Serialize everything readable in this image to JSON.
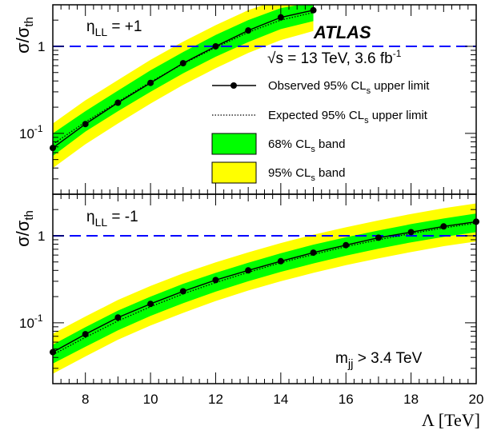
{
  "chart_data": [
    {
      "type": "line",
      "log_y": true,
      "xlim": [
        7,
        20
      ],
      "ylim": [
        0.02,
        3.0
      ],
      "ylabel": "σ/σ_th",
      "reference_line": 1,
      "annotation": {
        "prefix": "η",
        "sub": "LL",
        "suffix": " = +1"
      },
      "experiment": "ATLAS",
      "energy": {
        "sqrt": "√",
        "text": "s = 13 TeV, 3.6 fb",
        "sup": "-1"
      },
      "x": [
        7,
        8,
        9,
        10,
        11,
        12,
        13,
        14,
        15
      ],
      "observed": [
        0.068,
        0.128,
        0.225,
        0.38,
        0.64,
        1.0,
        1.52,
        2.15,
        2.6
      ],
      "expected": [
        0.075,
        0.135,
        0.23,
        0.39,
        0.63,
        0.97,
        1.45,
        2.0,
        2.45
      ],
      "band68": {
        "low": [
          0.055,
          0.105,
          0.18,
          0.3,
          0.49,
          0.76,
          1.12,
          1.58,
          1.95
        ],
        "high": [
          0.1,
          0.18,
          0.31,
          0.53,
          0.86,
          1.35,
          2.0,
          2.75,
          3.2
        ]
      },
      "band95": {
        "low": [
          0.04,
          0.075,
          0.13,
          0.22,
          0.36,
          0.56,
          0.84,
          1.18,
          1.5
        ],
        "high": [
          0.13,
          0.24,
          0.41,
          0.7,
          1.13,
          1.75,
          2.6,
          3.5,
          4.2
        ]
      },
      "yticks": [
        {
          "v": 1,
          "base": "1",
          "exp": ""
        },
        {
          "v": 0.1,
          "base": "10",
          "exp": "-1"
        }
      ],
      "legend": [
        {
          "kind": "observed",
          "base": "Observed 95% CL",
          "sub": "s",
          "tail": " upper limit",
          "color": "#000000"
        },
        {
          "kind": "expected",
          "base": "Expected 95% CL",
          "sub": "s",
          "tail": " upper limit",
          "color": "#000000"
        },
        {
          "kind": "band68",
          "base": "68% CL",
          "sub": "s",
          "tail": " band",
          "color": "#00ff00"
        },
        {
          "kind": "band95",
          "base": "95% CL",
          "sub": "s",
          "tail": " band",
          "color": "#ffff00"
        }
      ]
    },
    {
      "type": "line",
      "log_y": true,
      "xlim": [
        7,
        20
      ],
      "ylim": [
        0.02,
        3.0
      ],
      "ylabel": "σ/σ_th",
      "reference_line": 1,
      "annotation": {
        "prefix": "η",
        "sub": "LL",
        "suffix": " = -1"
      },
      "mass_cut": {
        "prefix": "m",
        "sub": "jj",
        "suffix": " > 3.4 TeV"
      },
      "xlabel": "Λ [TeV]",
      "x": [
        7,
        8,
        9,
        10,
        11,
        12,
        13,
        14,
        15,
        16,
        17,
        18,
        19,
        20
      ],
      "observed": [
        0.046,
        0.074,
        0.115,
        0.165,
        0.23,
        0.31,
        0.4,
        0.51,
        0.64,
        0.78,
        0.95,
        1.1,
        1.28,
        1.45
      ],
      "expected": [
        0.043,
        0.068,
        0.105,
        0.153,
        0.215,
        0.29,
        0.38,
        0.49,
        0.61,
        0.75,
        0.9,
        1.06,
        1.23,
        1.4
      ],
      "band68": {
        "low": [
          0.034,
          0.053,
          0.082,
          0.12,
          0.168,
          0.228,
          0.3,
          0.385,
          0.48,
          0.59,
          0.71,
          0.84,
          0.97,
          1.1
        ],
        "high": [
          0.056,
          0.089,
          0.138,
          0.2,
          0.28,
          0.375,
          0.49,
          0.63,
          0.79,
          0.96,
          1.15,
          1.36,
          1.58,
          1.8
        ]
      },
      "band95": {
        "low": [
          0.026,
          0.041,
          0.064,
          0.093,
          0.13,
          0.178,
          0.235,
          0.3,
          0.375,
          0.46,
          0.55,
          0.65,
          0.76,
          0.86
        ],
        "high": [
          0.075,
          0.118,
          0.183,
          0.265,
          0.37,
          0.495,
          0.645,
          0.825,
          1.03,
          1.25,
          1.5,
          1.78,
          2.07,
          2.35
        ]
      },
      "yticks": [
        {
          "v": 1,
          "base": "1",
          "exp": ""
        },
        {
          "v": 0.1,
          "base": "10",
          "exp": "-1"
        }
      ],
      "xticks": [
        8,
        10,
        12,
        14,
        16,
        18,
        20
      ]
    }
  ],
  "colors": {
    "band68": "#00ff00",
    "band95": "#ffff00",
    "reference": "#0000ff",
    "line": "#000000"
  }
}
